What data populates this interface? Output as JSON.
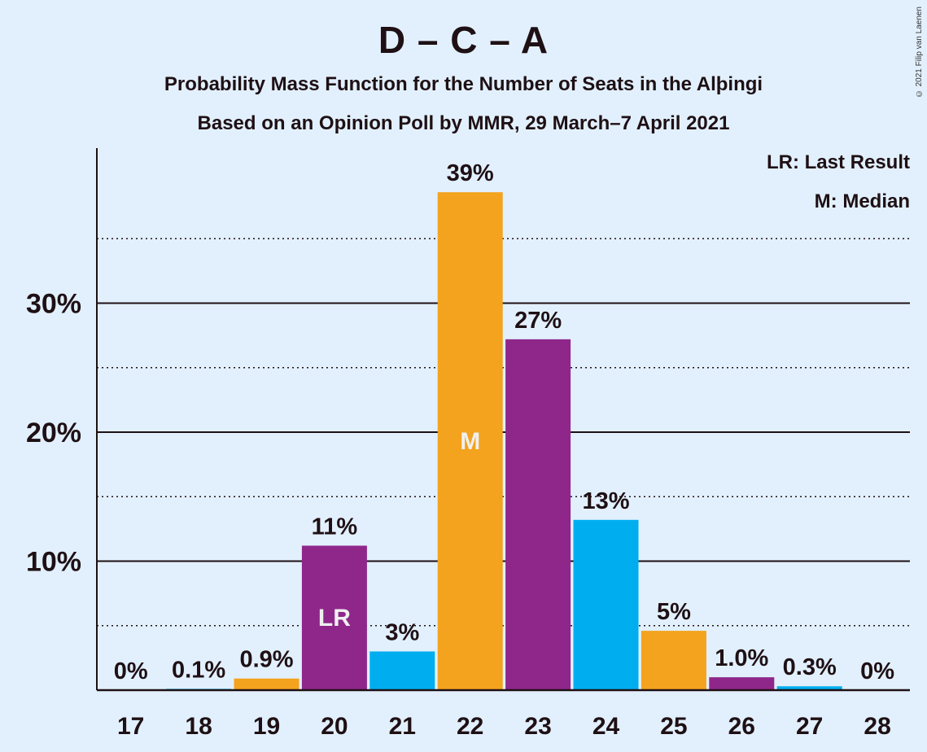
{
  "header": {
    "title": "D – C – A",
    "subtitle1": "Probability Mass Function for the Number of Seats in the Alþingi",
    "subtitle2": "Based on an Opinion Poll by MMR, 29 March–7 April 2021",
    "copyright": "© 2021 Filip van Laenen"
  },
  "legend": {
    "lr": "LR: Last Result",
    "m": "M: Median"
  },
  "colors": {
    "background": "#e2f0fd",
    "orange": "#f3a31d",
    "purple": "#8f278b",
    "blue": "#00aeef",
    "text": "#1e1014"
  },
  "chart_data": {
    "type": "bar",
    "categories": [
      "17",
      "18",
      "19",
      "20",
      "21",
      "22",
      "23",
      "24",
      "25",
      "26",
      "27",
      "28"
    ],
    "values": [
      0,
      0.1,
      0.9,
      11.2,
      3.0,
      38.6,
      27.2,
      13.2,
      4.6,
      1.0,
      0.3,
      0
    ],
    "value_labels": [
      "0%",
      "0.1%",
      "0.9%",
      "11%",
      "3%",
      "39%",
      "27%",
      "13%",
      "5%",
      "1.0%",
      "0.3%",
      "0%"
    ],
    "bar_colors": [
      "orange",
      "blue",
      "orange",
      "purple",
      "blue",
      "orange",
      "purple",
      "blue",
      "orange",
      "purple",
      "blue",
      "orange"
    ],
    "markers": {
      "20": "LR",
      "22": "M"
    },
    "ylim": [
      0,
      42
    ],
    "yticks": [
      10,
      20,
      30
    ],
    "ytick_labels": [
      "10%",
      "20%",
      "30%"
    ],
    "minor_gridlines": [
      5,
      15,
      25,
      35
    ],
    "grid": true,
    "legend_position": "top-right"
  }
}
